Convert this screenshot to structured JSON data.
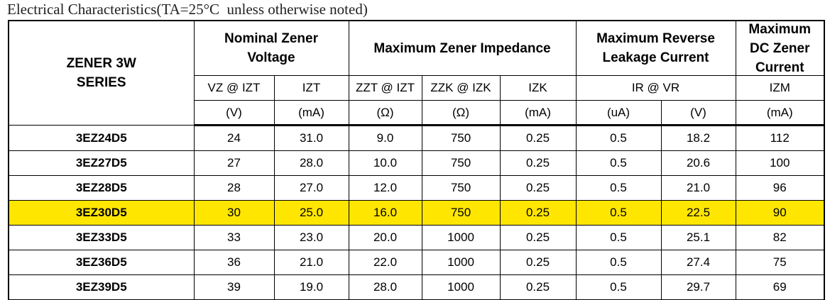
{
  "title": "Electrical Characteristics(TA=25°C  unless otherwise noted)",
  "table": {
    "series_header": "ZENER 3W SERIES",
    "groups": [
      "Nominal Zener Voltage",
      "Maximum Zener Impedance",
      "Maximum Reverse Leakage Current",
      "Maximum DC Zener Current"
    ],
    "subheaders": [
      "VZ @ IZT",
      "IZT",
      "ZZT @ IZT",
      "ZZK @ IZK",
      "IZK",
      "IR @ VR",
      "IZM"
    ],
    "units": [
      "(V)",
      "(mA)",
      "(Ω)",
      "(Ω)",
      "(mA)",
      "(uA)",
      "(V)",
      "(mA)"
    ],
    "rows": [
      [
        "3EZ24D5",
        "24",
        "31.0",
        "9.0",
        "750",
        "0.25",
        "0.5",
        "18.2",
        "112"
      ],
      [
        "3EZ27D5",
        "27",
        "28.0",
        "10.0",
        "750",
        "0.25",
        "0.5",
        "20.6",
        "100"
      ],
      [
        "3EZ28D5",
        "28",
        "27.0",
        "12.0",
        "750",
        "0.25",
        "0.5",
        "21.0",
        "96"
      ],
      [
        "3EZ30D5",
        "30",
        "25.0",
        "16.0",
        "750",
        "0.25",
        "0.5",
        "22.5",
        "90"
      ],
      [
        "3EZ33D5",
        "33",
        "23.0",
        "20.0",
        "1000",
        "0.25",
        "0.5",
        "25.1",
        "82"
      ],
      [
        "3EZ36D5",
        "36",
        "21.0",
        "22.0",
        "1000",
        "0.25",
        "0.5",
        "27.4",
        "75"
      ],
      [
        "3EZ39D5",
        "39",
        "19.0",
        "28.0",
        "1000",
        "0.25",
        "0.5",
        "29.7",
        "69"
      ]
    ]
  }
}
